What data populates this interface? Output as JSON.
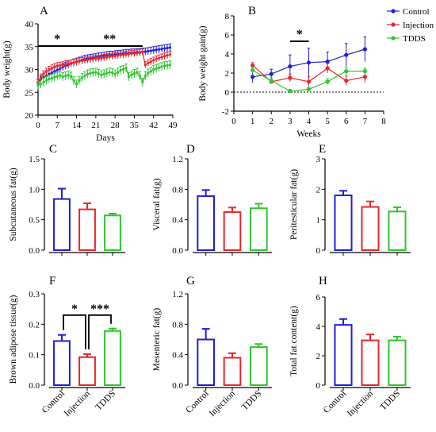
{
  "figure": {
    "colors": {
      "control": "#1f1fd6",
      "injection": "#e8262b",
      "tdds": "#2ec52e"
    },
    "legend_entries": [
      "Control",
      "Injection",
      "TDDS"
    ]
  },
  "chart_data": [
    {
      "id": "A",
      "panel_label": "A",
      "type": "line",
      "xlabel": "Days",
      "ylabel": "Body weight(g)",
      "xlim": [
        0,
        49
      ],
      "ylim": [
        20,
        40
      ],
      "xticks": [
        0,
        7,
        14,
        21,
        28,
        35,
        42,
        49
      ],
      "yticks": [
        20,
        25,
        30,
        35,
        40
      ],
      "x": [
        0,
        1,
        2,
        3,
        4,
        5,
        6,
        7,
        8,
        9,
        10,
        11,
        12,
        13,
        14,
        15,
        16,
        17,
        18,
        19,
        20,
        21,
        22,
        23,
        24,
        25,
        26,
        27,
        28,
        29,
        30,
        31,
        32,
        33,
        34,
        35,
        36,
        37,
        38,
        39,
        40,
        41,
        42,
        43,
        44,
        45,
        46,
        47,
        48
      ],
      "series": [
        {
          "name": "Control",
          "color_key": "control",
          "values": [
            27.0,
            27.8,
            28.3,
            28.6,
            29.0,
            29.3,
            29.6,
            29.9,
            30.2,
            30.5,
            30.8,
            31.0,
            31.3,
            31.5,
            31.7,
            31.9,
            32.1,
            32.3,
            32.4,
            32.5,
            32.6,
            32.7,
            32.8,
            32.9,
            33.0,
            33.1,
            33.2,
            33.2,
            33.3,
            33.4,
            33.4,
            33.5,
            33.6,
            33.6,
            33.7,
            33.7,
            33.8,
            33.8,
            33.9,
            33.9,
            34.0,
            34.1,
            34.2,
            34.3,
            34.4,
            34.5,
            34.6,
            34.7,
            34.8
          ],
          "errors": 0.8
        },
        {
          "name": "Injection",
          "color_key": "injection",
          "values": [
            27.2,
            28.3,
            29.0,
            29.6,
            30.0,
            30.3,
            30.6,
            30.8,
            30.9,
            31.0,
            31.2,
            31.3,
            31.4,
            31.5,
            31.6,
            31.8,
            31.9,
            32.0,
            32.1,
            32.2,
            32.3,
            32.4,
            32.4,
            32.5,
            32.6,
            32.7,
            32.8,
            32.9,
            33.0,
            33.1,
            33.2,
            33.2,
            33.3,
            33.4,
            33.5,
            33.5,
            33.6,
            33.7,
            33.8,
            31.0,
            31.4,
            31.7,
            32.0,
            32.3,
            32.5,
            32.7,
            32.9,
            33.1,
            33.3
          ],
          "errors": 0.7
        },
        {
          "name": "TDDS",
          "color_key": "tdds",
          "values": [
            26.5,
            26.8,
            27.2,
            27.6,
            27.9,
            28.1,
            28.3,
            28.5,
            28.7,
            28.4,
            28.6,
            28.8,
            28.5,
            27.5,
            26.8,
            27.6,
            28.2,
            28.6,
            29.0,
            29.2,
            29.3,
            29.4,
            29.1,
            28.8,
            29.0,
            29.2,
            29.4,
            29.3,
            29.0,
            29.4,
            29.8,
            30.0,
            30.3,
            28.4,
            28.8,
            29.1,
            29.4,
            28.6,
            27.2,
            28.6,
            29.2,
            29.6,
            30.0,
            30.2,
            30.4,
            30.6,
            30.8,
            30.9,
            31.0
          ],
          "errors": 0.9
        }
      ],
      "annotations": [
        {
          "text": "*",
          "x_range": [
            0,
            14
          ]
        },
        {
          "text": "**",
          "x_range": [
            14,
            38
          ]
        }
      ]
    },
    {
      "id": "B",
      "panel_label": "B",
      "type": "line",
      "xlabel": "Weeks",
      "ylabel": "Body weight gain(g)",
      "xlim": [
        0,
        8
      ],
      "ylim": [
        -2,
        8
      ],
      "xticks": [
        0,
        1,
        2,
        3,
        4,
        5,
        6,
        7,
        8
      ],
      "yticks": [
        -2,
        0,
        2,
        4,
        6,
        8
      ],
      "x": [
        1,
        2,
        3,
        4,
        5,
        6,
        7
      ],
      "series": [
        {
          "name": "Control",
          "color_key": "control",
          "values": [
            1.6,
            1.9,
            2.7,
            3.1,
            3.2,
            3.9,
            4.5
          ],
          "errors": [
            0.6,
            0.5,
            1.2,
            1.5,
            1.0,
            1.2,
            1.3
          ]
        },
        {
          "name": "Injection",
          "color_key": "injection",
          "values": [
            2.8,
            1.1,
            1.5,
            1.1,
            2.5,
            1.2,
            1.6
          ],
          "errors": [
            0.3,
            0.2,
            0.4,
            0.5,
            0.5,
            0.5,
            0.6
          ]
        },
        {
          "name": "TDDS",
          "color_key": "tdds",
          "values": [
            2.3,
            1.2,
            0.1,
            0.3,
            1.1,
            2.2,
            2.2
          ],
          "errors": [
            0.3,
            0.3,
            0.2,
            0.2,
            0.3,
            0.4,
            0.3
          ]
        }
      ],
      "reference_line": 0,
      "annotations": [
        {
          "text": "*",
          "x_range": [
            3,
            4
          ]
        }
      ],
      "legend": "top-right"
    },
    {
      "id": "C",
      "panel_label": "C",
      "type": "bar",
      "categories": [
        "Control",
        "Injection",
        "TDDS"
      ],
      "values": [
        0.84,
        0.67,
        0.57
      ],
      "errors": [
        0.17,
        0.1,
        0.03
      ],
      "ylabel": "Subcutaneous fat(g)",
      "ylim": [
        0,
        1.5
      ],
      "yticks": [
        0.0,
        0.5,
        1.0,
        1.5
      ],
      "ytick_labels": [
        "0.0",
        "0.5",
        "1.0",
        "1.5"
      ]
    },
    {
      "id": "D",
      "panel_label": "D",
      "type": "bar",
      "categories": [
        "Control",
        "Injection",
        "TDDS"
      ],
      "values": [
        0.71,
        0.5,
        0.55
      ],
      "errors": [
        0.08,
        0.06,
        0.06
      ],
      "ylabel": "Visceral fat(g)",
      "ylim": [
        0,
        1.2
      ],
      "yticks": [
        0.0,
        0.4,
        0.8,
        1.2
      ],
      "ytick_labels": [
        "0.0",
        "0.4",
        "0.8",
        "1.2"
      ]
    },
    {
      "id": "E",
      "panel_label": "E",
      "type": "bar",
      "categories": [
        "Control",
        "Injection",
        "TDDS"
      ],
      "values": [
        1.8,
        1.42,
        1.27
      ],
      "errors": [
        0.15,
        0.18,
        0.14
      ],
      "ylabel": "Peritesticular fat(g)",
      "ylim": [
        0,
        3
      ],
      "yticks": [
        0,
        1,
        2,
        3
      ],
      "ytick_labels": [
        "0",
        "1",
        "2",
        "3"
      ]
    },
    {
      "id": "F",
      "panel_label": "F",
      "type": "bar",
      "categories": [
        "Control",
        "Injection",
        "TDDS"
      ],
      "values": [
        0.145,
        0.092,
        0.178
      ],
      "errors": [
        0.02,
        0.01,
        0.008
      ],
      "ylabel": "Brown adipose tissue(g)",
      "ylim": [
        0,
        0.3
      ],
      "yticks": [
        0.0,
        0.1,
        0.2,
        0.3
      ],
      "ytick_labels": [
        "0.0",
        "0.1",
        "0.2",
        "0.3"
      ],
      "show_category_labels": true,
      "annotations": [
        {
          "text": "*",
          "from": 0,
          "to": 1,
          "y": 0.23
        },
        {
          "text": "***",
          "from": 1,
          "to": 2,
          "y": 0.23
        }
      ]
    },
    {
      "id": "G",
      "panel_label": "G",
      "type": "bar",
      "categories": [
        "Control",
        "Injection",
        "TDDS"
      ],
      "values": [
        0.6,
        0.36,
        0.5
      ],
      "errors": [
        0.14,
        0.06,
        0.04
      ],
      "ylabel": "Mesenteric fat(g)",
      "ylim": [
        0,
        1.2
      ],
      "yticks": [
        0.0,
        0.4,
        0.8,
        1.2
      ],
      "ytick_labels": [
        "0.0",
        "0.4",
        "0.8",
        "1.2"
      ],
      "show_category_labels": true
    },
    {
      "id": "H",
      "panel_label": "H",
      "type": "bar",
      "categories": [
        "Control",
        "Injection",
        "TDDS"
      ],
      "values": [
        4.1,
        3.05,
        3.05
      ],
      "errors": [
        0.4,
        0.4,
        0.25
      ],
      "ylabel": "Total fat content(g)",
      "ylim": [
        0,
        6
      ],
      "yticks": [
        0,
        2,
        4,
        6
      ],
      "ytick_labels": [
        "0",
        "2",
        "4",
        "6"
      ],
      "show_category_labels": true
    }
  ]
}
